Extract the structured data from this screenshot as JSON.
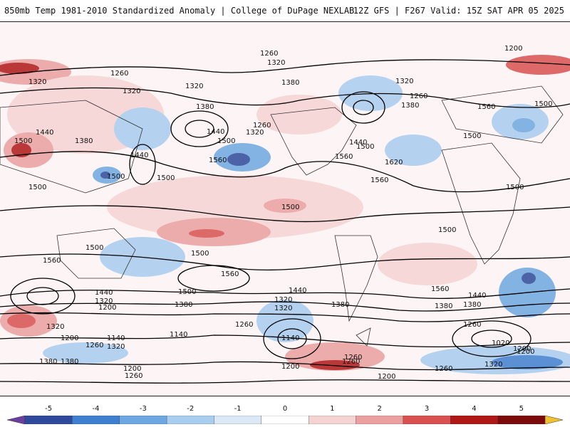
{
  "header": {
    "left_title": "850mb Temp 1981-2010 Standardized Anomaly | College of DuPage NEXLAB",
    "right_title": "12Z GFS | F267 Valid: 15Z SAT APR 05 2025"
  },
  "colorbar": {
    "ticks": [
      "-5",
      "-4",
      "-3",
      "-2",
      "-1",
      "0",
      "1",
      "2",
      "3",
      "4",
      "5"
    ],
    "colors": [
      "#6a3fa0",
      "#2f4a9a",
      "#3f7fd0",
      "#6ea8e0",
      "#a8cdef",
      "#dbe9f7",
      "#ffffff",
      "#f6d3d3",
      "#eba0a0",
      "#d85050",
      "#b01818",
      "#7d0a0a",
      "#f2c12e"
    ]
  },
  "contour_labels": [
    "1260",
    "1320",
    "1200",
    "1260",
    "1320",
    "1320",
    "1320",
    "1380",
    "1320",
    "1380",
    "1260",
    "1380",
    "1440",
    "1500",
    "1440",
    "1380",
    "1500",
    "1500",
    "1560",
    "1440",
    "1320",
    "1260",
    "1500",
    "1560",
    "1440",
    "1500",
    "1620",
    "1560",
    "1560",
    "1500",
    "1500",
    "1500",
    "1500",
    "1500",
    "1500",
    "1500",
    "1500",
    "1560",
    "1560",
    "1500",
    "1440",
    "1380",
    "1440",
    "1320",
    "1200",
    "1380",
    "1320",
    "1320",
    "1380",
    "1560",
    "1440",
    "1380",
    "1320",
    "1260",
    "1260",
    "1200",
    "1140",
    "1140",
    "1260",
    "1200",
    "1320",
    "1260",
    "1380",
    "1020",
    "1200",
    "1260",
    "1200",
    "1260",
    "1380",
    "1320",
    "1200",
    "1200",
    "1260",
    "1140"
  ]
}
